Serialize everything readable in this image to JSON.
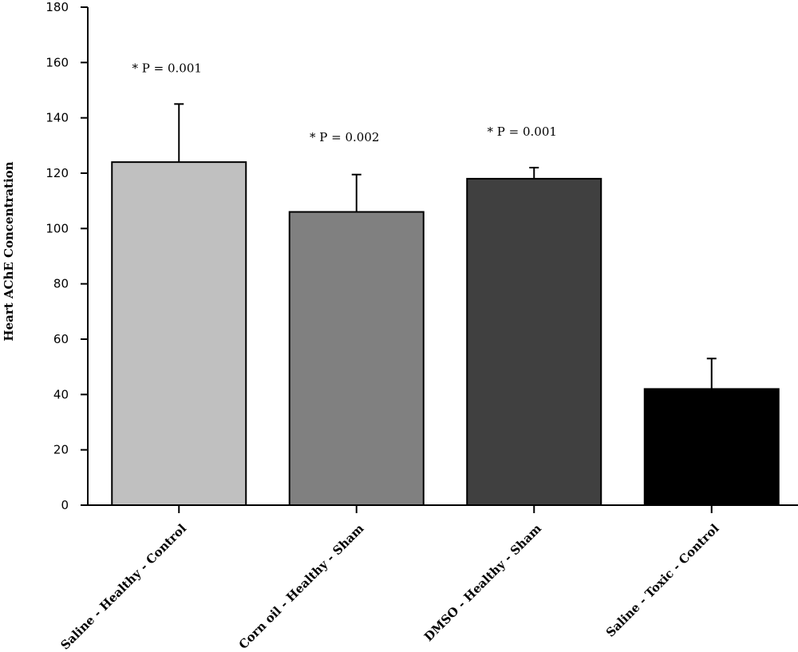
{
  "chart_data": {
    "type": "bar",
    "title": "",
    "xlabel": "",
    "ylabel": "Heart AChE Concentration",
    "ylim": [
      0,
      180
    ],
    "yticks": [
      0,
      20,
      40,
      60,
      80,
      100,
      120,
      140,
      160,
      180
    ],
    "grid": false,
    "categories": [
      "Saline - Healthy - Control",
      "Corn oil - Healthy - Sham",
      "DMSO - Healthy - Sham",
      "Saline - Toxic - Control"
    ],
    "values": [
      124,
      106,
      118,
      42
    ],
    "error_upper": [
      145,
      119.5,
      122,
      53
    ],
    "colors": [
      "#c0c0c0",
      "#808080",
      "#404040",
      "#000000"
    ],
    "annotations": [
      "* P = 0.001",
      "* P = 0.002",
      "* P = 0.001",
      ""
    ],
    "annotation_y": [
      158,
      133,
      135,
      null
    ]
  }
}
